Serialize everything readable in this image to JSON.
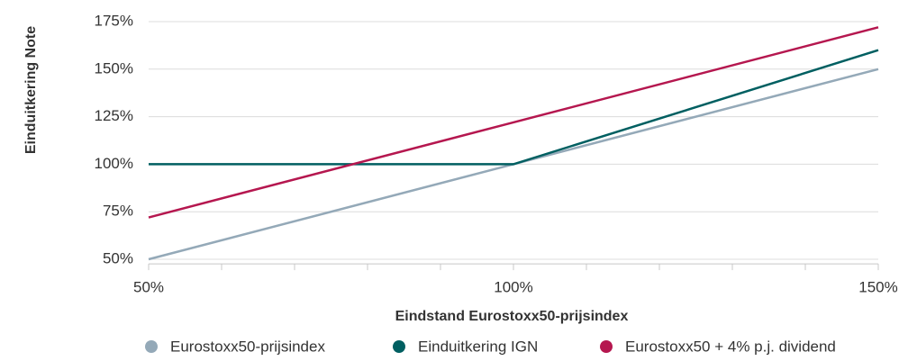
{
  "chart_data": {
    "type": "line",
    "xlabel": "Eindstand Eurostoxx50-prijsindex",
    "ylabel": "Einduitkering Note",
    "x": [
      50,
      100,
      150
    ],
    "series": [
      {
        "name": "Eurostoxx50-prijsindex",
        "color": "#94a9b8",
        "values": [
          50,
          100,
          150
        ]
      },
      {
        "name": "Einduitkering IGN",
        "color": "#005f61",
        "values": [
          100,
          100,
          160
        ]
      },
      {
        "name": "Eurostoxx50 + 4% p.j. dividend",
        "color": "#b5174f",
        "values": [
          72,
          122,
          172
        ]
      }
    ],
    "xlim": [
      50,
      150
    ],
    "xticks": [
      {
        "value": 50,
        "label": "50%"
      },
      {
        "value": 100,
        "label": "100%"
      },
      {
        "value": 150,
        "label": "150%"
      }
    ],
    "xminorticks": [
      60,
      70,
      80,
      90,
      110,
      120,
      130,
      140
    ],
    "ylim": [
      49,
      176
    ],
    "yticks": [
      {
        "value": 50,
        "label": "50%"
      },
      {
        "value": 75,
        "label": "75%"
      },
      {
        "value": 100,
        "label": "100%"
      },
      {
        "value": 125,
        "label": "125%"
      },
      {
        "value": 150,
        "label": "150%"
      },
      {
        "value": 175,
        "label": "175%"
      }
    ],
    "grid": true,
    "legend": "bottom"
  }
}
